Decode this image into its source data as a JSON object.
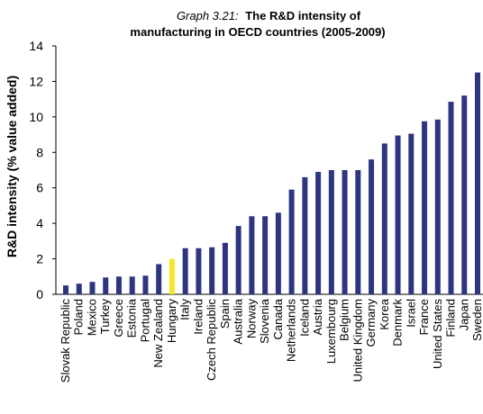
{
  "chart_data": {
    "type": "bar",
    "title_prefix": "Graph 3.21:",
    "title_line1": "The R&D intensity  of",
    "title_line2": "manufacturing  in OECD countries (2005-2009)",
    "xlabel": "",
    "ylabel": "R&D intensity (% value added)",
    "ylim": [
      0,
      14
    ],
    "yticks": [
      0,
      2,
      4,
      6,
      8,
      10,
      12,
      14
    ],
    "grid": false,
    "legend": "none",
    "bar_color": "#2e3580",
    "highlight_color": "#f5e62a",
    "highlight_category": "Hungary",
    "categories": [
      "Slovak Republic",
      "Poland",
      "Mexico",
      "Turkey",
      "Greece",
      "Estonia",
      "Portugal",
      "New Zealand",
      "Hungary",
      "Italy",
      "Ireland",
      "Czech Republic",
      "Spain",
      "Australia",
      "Norway",
      "Slovenia",
      "Canada",
      "Netherlands",
      "Iceland",
      "Austria",
      "Luxembourg",
      "Belgium",
      "United Kingdom",
      "Germany",
      "Korea",
      "Denmark",
      "Israel",
      "France",
      "United States",
      "Finland",
      "Japan",
      "Sweden"
    ],
    "values": [
      0.5,
      0.6,
      0.7,
      0.95,
      1.0,
      1.0,
      1.05,
      1.7,
      2.0,
      2.6,
      2.6,
      2.65,
      2.9,
      3.85,
      4.4,
      4.4,
      4.6,
      5.9,
      6.6,
      6.9,
      7.0,
      7.0,
      7.0,
      7.6,
      8.5,
      8.95,
      9.05,
      9.75,
      9.85,
      10.85,
      11.2,
      12.5
    ]
  }
}
